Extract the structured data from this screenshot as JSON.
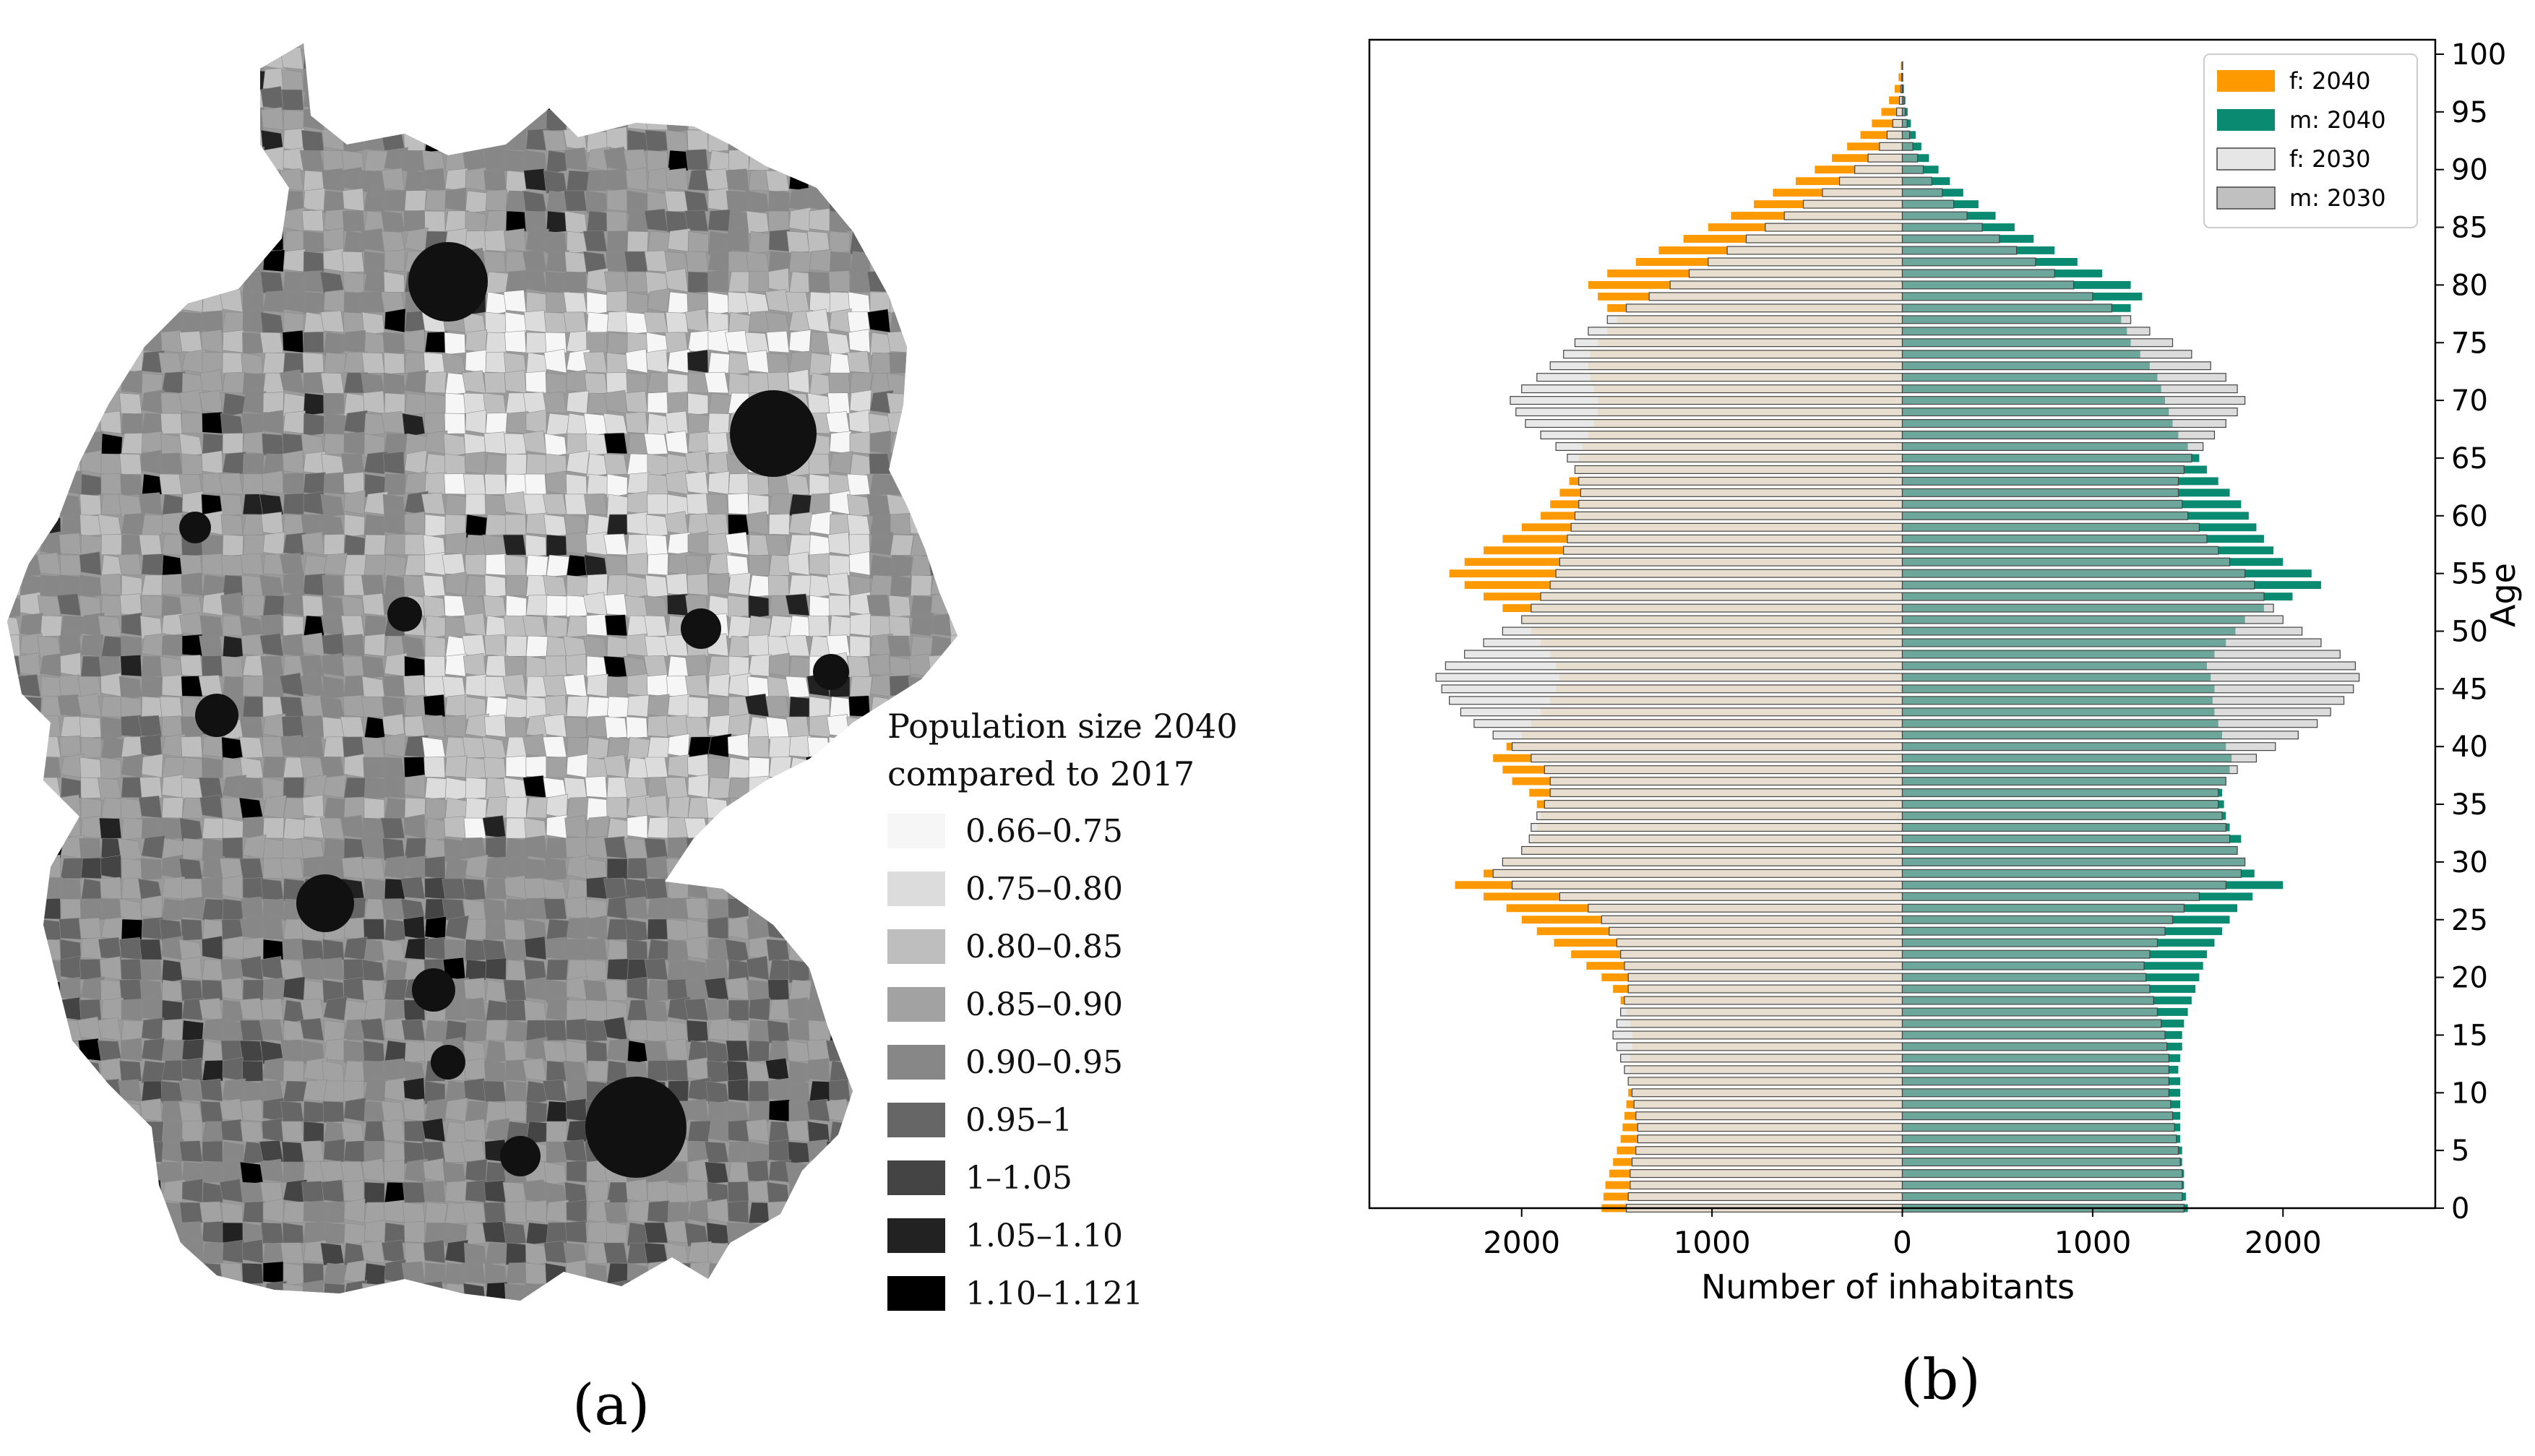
{
  "panel_a": {
    "label": "(a)",
    "legend": {
      "title_line1": "Population size 2040",
      "title_line2": "compared to 2017",
      "items": [
        {
          "label": "0.66–0.75",
          "color": "#f6f6f6"
        },
        {
          "label": "0.75–0.80",
          "color": "#dcdcdc"
        },
        {
          "label": "0.80–0.85",
          "color": "#bebebe"
        },
        {
          "label": "0.85–0.90",
          "color": "#a2a2a2"
        },
        {
          "label": "0.90–0.95",
          "color": "#878787"
        },
        {
          "label": "0.95–1",
          "color": "#666666"
        },
        {
          "label": "1–1.05",
          "color": "#444444"
        },
        {
          "label": "1.05–1.10",
          "color": "#222222"
        },
        {
          "label": "1.10–1.121",
          "color": "#000000"
        }
      ]
    }
  },
  "panel_b": {
    "label": "(b)"
  },
  "chart_data": {
    "type": "bar",
    "orientation": "horizontal",
    "subtype": "population pyramid",
    "xlabel": "Number of inhabitants",
    "ylabel": "Age",
    "xlim": [
      -2800,
      2800
    ],
    "ylim": [
      0,
      100
    ],
    "x_ticks": [
      -2000,
      -1000,
      0,
      1000,
      2000
    ],
    "x_tick_labels": [
      "2000",
      "1000",
      "0",
      "1000",
      "2000"
    ],
    "y_ticks": [
      0,
      5,
      10,
      15,
      20,
      25,
      30,
      35,
      40,
      45,
      50,
      55,
      60,
      65,
      70,
      75,
      80,
      85,
      90,
      95,
      100
    ],
    "y_tick_labels": [
      "0",
      "5",
      "10",
      "15",
      "20",
      "25",
      "30",
      "35",
      "40",
      "45",
      "50",
      "55",
      "60",
      "65",
      "70",
      "75",
      "80",
      "85",
      "90",
      "95",
      "100"
    ],
    "legend_position": "top-right",
    "legend": [
      {
        "label": "f: 2040",
        "color": "#ff9900"
      },
      {
        "label": "m: 2040",
        "color": "#0b8a72"
      },
      {
        "label": "f: 2030",
        "color": "#e6e6e6"
      },
      {
        "label": "m: 2030",
        "color": "#c0c0c0"
      }
    ],
    "ages": [
      0,
      1,
      2,
      3,
      4,
      5,
      6,
      7,
      8,
      9,
      10,
      11,
      12,
      13,
      14,
      15,
      16,
      17,
      18,
      19,
      20,
      21,
      22,
      23,
      24,
      25,
      26,
      27,
      28,
      29,
      30,
      31,
      32,
      33,
      34,
      35,
      36,
      37,
      38,
      39,
      40,
      41,
      42,
      43,
      44,
      45,
      46,
      47,
      48,
      49,
      50,
      51,
      52,
      53,
      54,
      55,
      56,
      57,
      58,
      59,
      60,
      61,
      62,
      63,
      64,
      65,
      66,
      67,
      68,
      69,
      70,
      71,
      72,
      73,
      74,
      75,
      76,
      77,
      78,
      79,
      80,
      81,
      82,
      83,
      84,
      85,
      86,
      87,
      88,
      89,
      90,
      91,
      92,
      93,
      94,
      95,
      96,
      97,
      98,
      99
    ],
    "series": [
      {
        "name": "f: 2040",
        "values": [
          1580,
          1570,
          1560,
          1540,
          1520,
          1500,
          1480,
          1470,
          1460,
          1450,
          1440,
          1440,
          1430,
          1430,
          1420,
          1420,
          1430,
          1450,
          1480,
          1520,
          1580,
          1660,
          1740,
          1830,
          1920,
          2000,
          2080,
          2200,
          2350,
          2200,
          2100,
          2000,
          1950,
          1920,
          1900,
          1920,
          1960,
          2050,
          2100,
          2150,
          2080,
          2000,
          1950,
          1900,
          1850,
          1820,
          1800,
          1820,
          1850,
          1900,
          1950,
          2000,
          2100,
          2200,
          2300,
          2380,
          2300,
          2200,
          2100,
          2000,
          1900,
          1850,
          1800,
          1750,
          1720,
          1700,
          1680,
          1650,
          1620,
          1600,
          1600,
          1620,
          1640,
          1650,
          1640,
          1600,
          1550,
          1500,
          1550,
          1600,
          1650,
          1550,
          1400,
          1280,
          1150,
          1020,
          900,
          780,
          680,
          560,
          460,
          370,
          290,
          220,
          160,
          110,
          70,
          40,
          20,
          8
        ]
      },
      {
        "name": "m: 2040",
        "values": [
          1500,
          1490,
          1480,
          1480,
          1470,
          1470,
          1460,
          1460,
          1460,
          1460,
          1460,
          1460,
          1450,
          1460,
          1470,
          1470,
          1480,
          1500,
          1520,
          1540,
          1560,
          1580,
          1600,
          1640,
          1680,
          1720,
          1760,
          1840,
          2000,
          1850,
          1800,
          1760,
          1780,
          1720,
          1700,
          1690,
          1680,
          1700,
          1720,
          1730,
          1700,
          1680,
          1660,
          1640,
          1630,
          1640,
          1620,
          1600,
          1640,
          1700,
          1750,
          1800,
          1900,
          2050,
          2200,
          2150,
          2000,
          1950,
          1900,
          1860,
          1820,
          1780,
          1720,
          1660,
          1600,
          1560,
          1500,
          1450,
          1420,
          1400,
          1380,
          1360,
          1340,
          1300,
          1250,
          1200,
          1180,
          1150,
          1200,
          1260,
          1200,
          1050,
          920,
          800,
          690,
          590,
          490,
          400,
          320,
          250,
          190,
          140,
          100,
          70,
          45,
          28,
          16,
          8,
          4,
          2
        ]
      },
      {
        "name": "f: 2030",
        "values": [
          1450,
          1440,
          1430,
          1430,
          1420,
          1400,
          1390,
          1390,
          1400,
          1410,
          1420,
          1440,
          1460,
          1480,
          1500,
          1520,
          1500,
          1480,
          1460,
          1440,
          1440,
          1460,
          1480,
          1500,
          1540,
          1580,
          1650,
          1800,
          2050,
          2150,
          2100,
          2000,
          1960,
          1950,
          1920,
          1880,
          1850,
          1850,
          1880,
          1950,
          2050,
          2150,
          2250,
          2320,
          2380,
          2420,
          2450,
          2400,
          2300,
          2200,
          2100,
          2000,
          1950,
          1900,
          1850,
          1820,
          1800,
          1780,
          1760,
          1740,
          1720,
          1700,
          1690,
          1700,
          1720,
          1760,
          1820,
          1900,
          1980,
          2030,
          2060,
          2000,
          1920,
          1850,
          1780,
          1720,
          1650,
          1550,
          1450,
          1330,
          1220,
          1120,
          1020,
          920,
          820,
          720,
          620,
          520,
          420,
          330,
          250,
          180,
          120,
          80,
          50,
          30,
          15,
          7,
          3,
          1
        ]
      },
      {
        "name": "m: 2030",
        "values": [
          1480,
          1470,
          1470,
          1470,
          1460,
          1450,
          1440,
          1430,
          1420,
          1410,
          1400,
          1400,
          1400,
          1400,
          1390,
          1380,
          1360,
          1340,
          1320,
          1300,
          1280,
          1270,
          1300,
          1340,
          1380,
          1420,
          1480,
          1560,
          1700,
          1780,
          1800,
          1760,
          1720,
          1700,
          1680,
          1660,
          1660,
          1700,
          1760,
          1860,
          1960,
          2080,
          2180,
          2250,
          2320,
          2370,
          2400,
          2380,
          2300,
          2200,
          2100,
          2000,
          1950,
          1900,
          1850,
          1800,
          1720,
          1660,
          1600,
          1560,
          1500,
          1470,
          1450,
          1450,
          1480,
          1520,
          1580,
          1640,
          1700,
          1760,
          1800,
          1760,
          1700,
          1620,
          1520,
          1420,
          1300,
          1200,
          1100,
          1000,
          900,
          800,
          700,
          600,
          510,
          420,
          340,
          270,
          210,
          155,
          110,
          80,
          55,
          38,
          25,
          15,
          8,
          4,
          2,
          1
        ]
      }
    ]
  }
}
